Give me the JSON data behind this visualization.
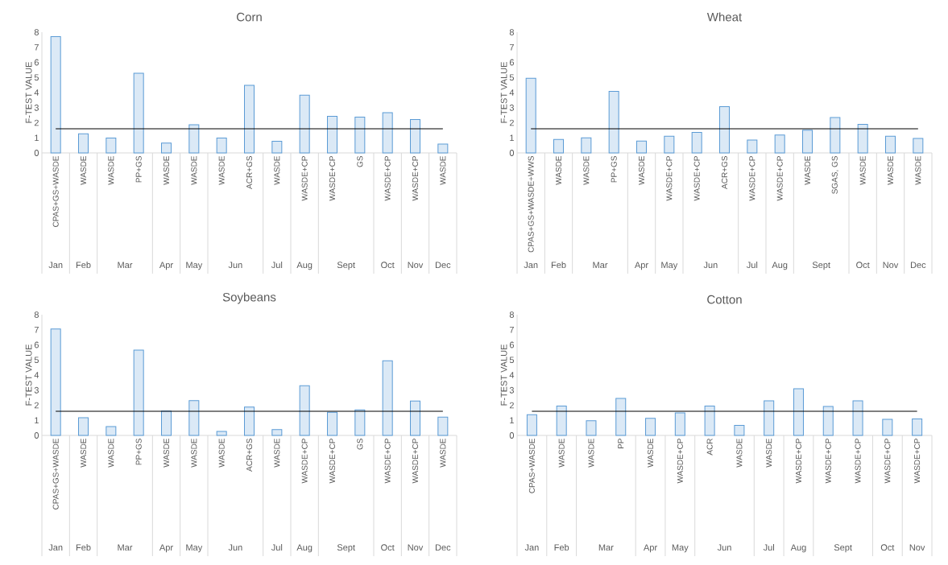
{
  "chart_data": [
    {
      "type": "bar",
      "title": "Corn",
      "ylabel": "F-TEST VALUE",
      "color": "#5b9bd5",
      "ylim": [
        0,
        8
      ],
      "yticks": [
        0,
        1,
        2,
        3,
        4,
        5,
        6,
        7,
        8
      ],
      "categories": [
        "CPAS+GS+WASDE",
        "WASDE",
        "WASDE",
        "PP+GS",
        "WASDE",
        "WASDE",
        "WASDE",
        "ACR+GS",
        "WASDE",
        "WASDE+CP",
        "WASDE+CP",
        "GS",
        "WASDE+CP",
        "WASDE+CP",
        "WASDE"
      ],
      "values": [
        7.7,
        1.26,
        0.99,
        5.28,
        0.65,
        1.87,
        0.99,
        4.48,
        0.77,
        3.83,
        2.42,
        2.37,
        2.67,
        2.21,
        0.58
      ],
      "ref_lines": [
        {
          "axis": "y",
          "value": 1.6,
          "color": "#000000"
        }
      ],
      "annotations": [
        "Jan",
        "Feb",
        "Mar",
        "Apr",
        "May",
        "Jun",
        "Jul",
        "Aug",
        "Sept",
        "Oct",
        "Nov",
        "Dec"
      ]
    },
    {
      "type": "bar",
      "title": "Wheat",
      "ylabel": "F-TEST VALUE",
      "color": "#5b9bd5",
      "ylim": [
        0,
        8
      ],
      "yticks": [
        0,
        1,
        2,
        3,
        4,
        5,
        6,
        7,
        8
      ],
      "categories": [
        "CPAS+GS+WASDE+WWS",
        "WASDE",
        "WASDE",
        "PP+GS",
        "WASDE",
        "WASDE+CP",
        "WASDE+CP",
        "ACR+GS",
        "WASDE+CP",
        "WASDE+CP",
        "WASDE",
        "SGAS, GS",
        "WASDE",
        "WASDE",
        "WASDE"
      ],
      "values": [
        4.95,
        0.89,
        1.0,
        4.08,
        0.79,
        1.1,
        1.36,
        3.06,
        0.85,
        1.19,
        1.51,
        2.34,
        1.89,
        1.1,
        0.96
      ],
      "ref_lines": [
        {
          "axis": "y",
          "value": 1.6,
          "color": "#000000"
        }
      ],
      "annotations": [
        "Jan",
        "Feb",
        "Mar",
        "Apr",
        "May",
        "Jun",
        "Jul",
        "Aug",
        "Sept",
        "Oct",
        "Nov",
        "Dec"
      ]
    },
    {
      "type": "bar",
      "title": "Soybeans",
      "ylabel": "F-TEST VALUE",
      "color": "#5b9bd5",
      "ylim": [
        0,
        8
      ],
      "yticks": [
        0,
        1,
        2,
        3,
        4,
        5,
        6,
        7,
        8
      ],
      "categories": [
        "CPAS+GS+WASDE",
        "WASDE",
        "WASDE",
        "PP+GS",
        "WASDE",
        "WASDE",
        "WASDE",
        "ACR+GS",
        "WASDE",
        "WASDE+CP",
        "WASDE+CP",
        "GS",
        "WASDE+CP",
        "WASDE+CP",
        "WASDE"
      ],
      "values": [
        7.05,
        1.17,
        0.59,
        5.65,
        1.61,
        2.3,
        0.27,
        1.88,
        0.39,
        3.29,
        1.54,
        1.69,
        4.95,
        2.28,
        1.21
      ],
      "ref_lines": [
        {
          "axis": "y",
          "value": 1.6,
          "color": "#000000"
        }
      ],
      "annotations": [
        "Jan",
        "Feb",
        "Mar",
        "Apr",
        "May",
        "Jun",
        "Jul",
        "Aug",
        "Sept",
        "Oct",
        "Nov",
        "Dec"
      ]
    },
    {
      "type": "bar",
      "title": "Cotton",
      "ylabel": "F-TEST VALUE",
      "color": "#5b9bd5",
      "ylim": [
        0,
        8
      ],
      "yticks": [
        0,
        1,
        2,
        3,
        4,
        5,
        6,
        7,
        8
      ],
      "categories": [
        "CPAS+WASDE",
        "WASDE",
        "WASDE",
        "PP",
        "WASDE",
        "WASDE+CP",
        "ACR",
        "WASDE",
        "WASDE",
        "WASDE+CP",
        "WASDE+CP",
        "WASDE+CP",
        "WASDE+CP",
        "WASDE+CP"
      ],
      "values": [
        1.37,
        1.95,
        0.97,
        2.45,
        1.13,
        1.49,
        1.95,
        0.67,
        2.29,
        3.09,
        1.92,
        2.29,
        1.07,
        1.1
      ],
      "ref_lines": [
        {
          "axis": "y",
          "value": 1.6,
          "color": "#000000"
        }
      ],
      "annotations": [
        "Jan",
        "Feb",
        "Mar",
        "Apr",
        "May",
        "Jun",
        "Jul",
        "Aug",
        "Sept",
        "Oct",
        "Nov"
      ]
    }
  ]
}
